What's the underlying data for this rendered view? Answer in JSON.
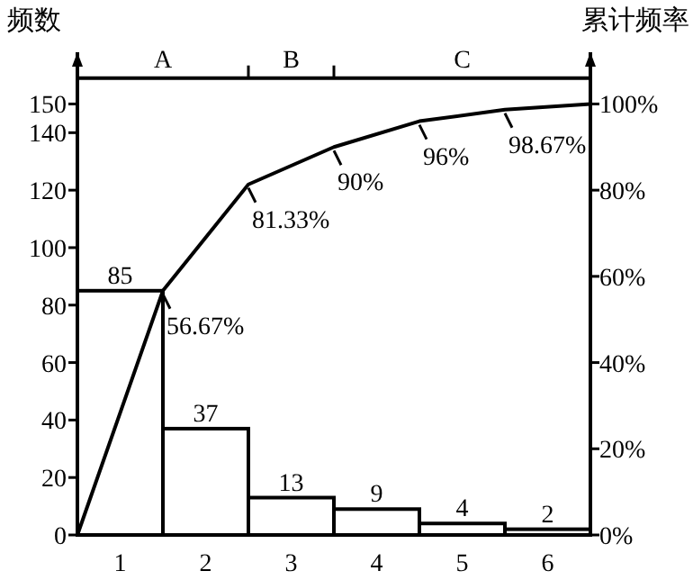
{
  "chart_data": {
    "type": "bar",
    "ylabel": "频数",
    "y2label": "累计频率",
    "xlim": [
      0.5,
      6.5
    ],
    "xticks": [
      1,
      2,
      3,
      4,
      5,
      6
    ],
    "ylim": [
      0,
      168
    ],
    "yticks": [
      0,
      20,
      40,
      60,
      80,
      100,
      120,
      140,
      150
    ],
    "y2lim": [
      0,
      112
    ],
    "y2ticks": [
      {
        "value": 0,
        "label": "0%"
      },
      {
        "value": 20,
        "label": "20%"
      },
      {
        "value": 40,
        "label": "40%"
      },
      {
        "value": 60,
        "label": "60%"
      },
      {
        "value": 80,
        "label": "80%"
      },
      {
        "value": 100,
        "label": "100%"
      }
    ],
    "annotations": [
      "A",
      "B",
      "C"
    ],
    "ref_lines": [
      {
        "axis": "y",
        "value": 159
      }
    ],
    "series": [
      {
        "color": "#ffffff",
        "x": [
          1,
          2,
          3,
          4,
          5,
          6
        ],
        "values": [
          85,
          37,
          13,
          9,
          4,
          2
        ],
        "value_labels": [
          "85",
          "37",
          "13",
          "9",
          "4",
          "2"
        ]
      },
      {
        "type": "line",
        "axis": "y2",
        "color": "#000000",
        "x": [
          0.5,
          1.5,
          2.5,
          3.5,
          4.5,
          5.5,
          6.5
        ],
        "values": [
          0,
          56.67,
          81.33,
          90,
          96,
          98.67,
          100
        ],
        "value_labels": [
          null,
          "56.67%",
          "81.33%",
          "90%",
          "96%",
          "98.67%",
          null
        ]
      }
    ],
    "marker": "none",
    "line_style": "solid"
  }
}
